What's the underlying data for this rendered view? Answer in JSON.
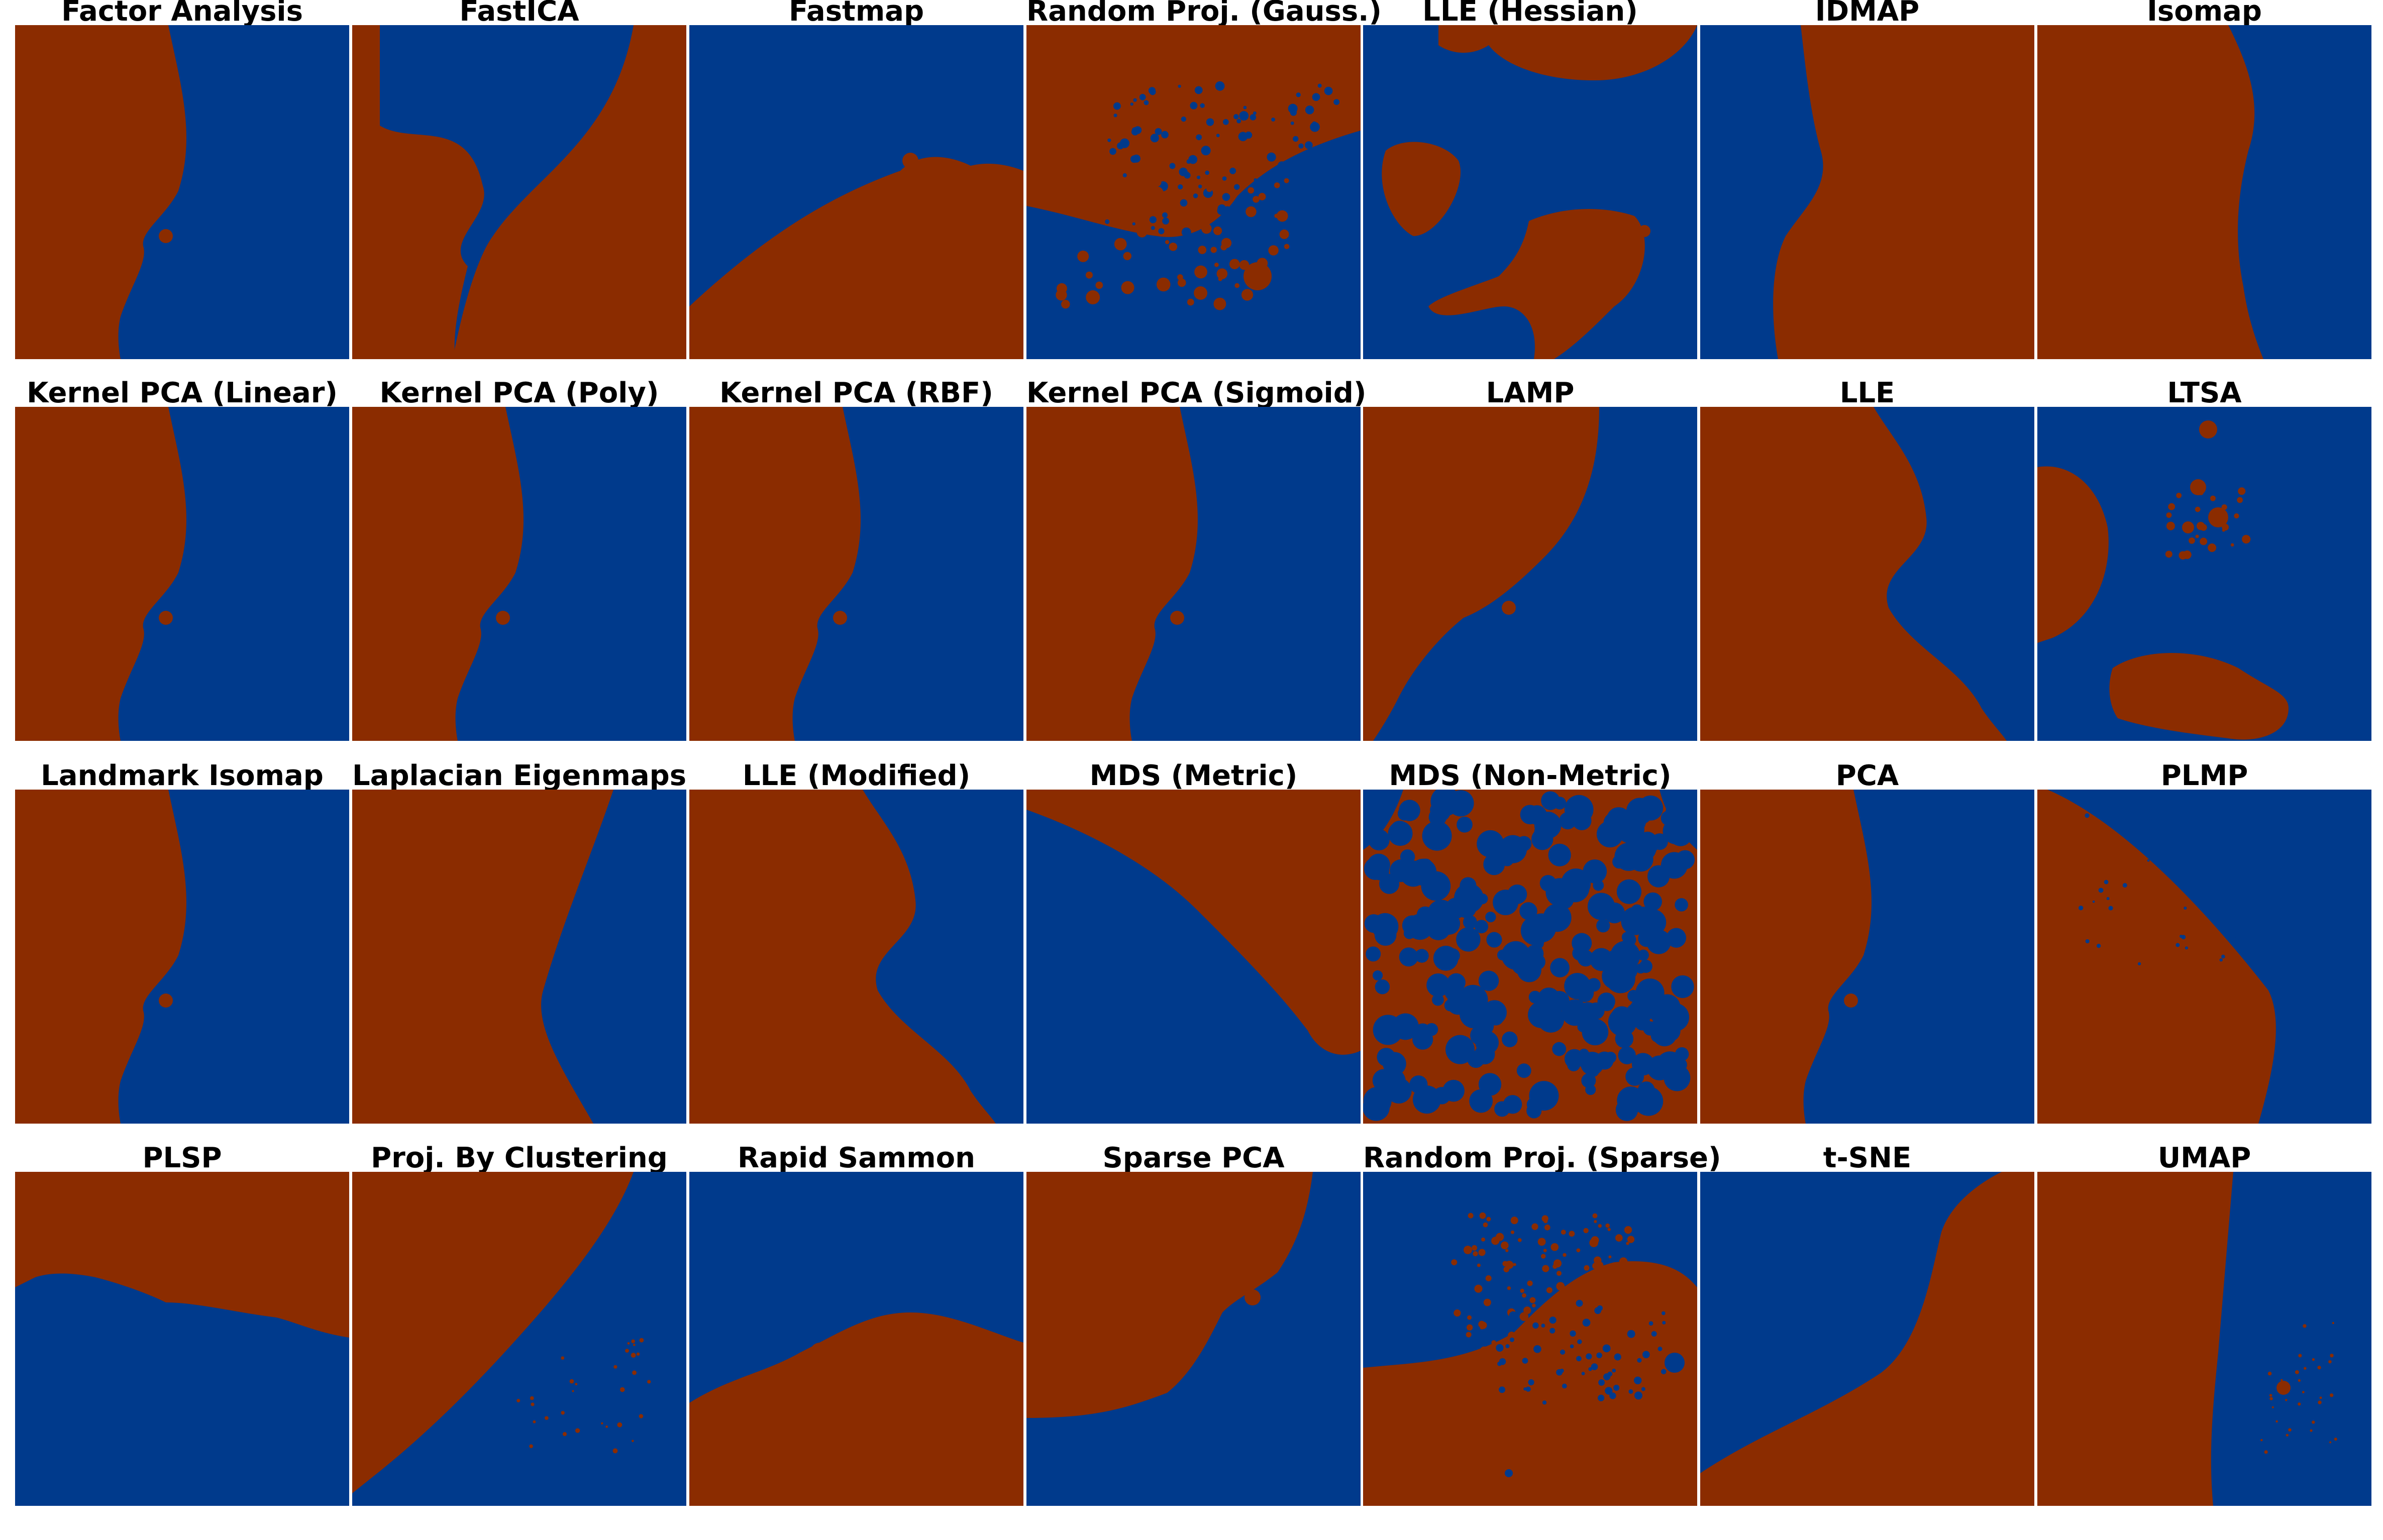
{
  "chart_data": {
    "type": "heatmap",
    "grid": false,
    "layout": "4x7 small multiples",
    "colors": {
      "region_a": "#8b2c00",
      "region_b": "#003a8c",
      "background": "#ffffff"
    },
    "panels": [
      {
        "title": "Factor Analysis",
        "shape": "left_red_curve"
      },
      {
        "title": "FastICA",
        "shape": "left_red_strip_bulge"
      },
      {
        "title": "Fastmap",
        "shape": "bottom_red_wedge"
      },
      {
        "title": "Random Proj. (Gauss.)",
        "shape": "top_red_speckled"
      },
      {
        "title": "LLE (Hessian)",
        "shape": "blue_with_red_blobs"
      },
      {
        "title": "IDMAP",
        "shape": "center_red_band"
      },
      {
        "title": "Isomap",
        "shape": "left_red_wide"
      },
      {
        "title": "Kernel PCA (Linear)",
        "shape": "left_red_curve"
      },
      {
        "title": "Kernel PCA (Poly)",
        "shape": "left_red_curve"
      },
      {
        "title": "Kernel PCA (RBF)",
        "shape": "left_red_curve"
      },
      {
        "title": "Kernel PCA (Sigmoid)",
        "shape": "left_red_curve"
      },
      {
        "title": "LAMP",
        "shape": "left_red_wide_notch"
      },
      {
        "title": "LLE",
        "shape": "left_red_s_curve"
      },
      {
        "title": "LTSA",
        "shape": "blue_with_red_islands"
      },
      {
        "title": "Landmark Isomap",
        "shape": "left_red_curve"
      },
      {
        "title": "Laplacian Eigenmaps",
        "shape": "red_diagonal_wedge"
      },
      {
        "title": "LLE (Modified)",
        "shape": "left_red_s_curve"
      },
      {
        "title": "MDS (Metric)",
        "shape": "top_right_red"
      },
      {
        "title": "MDS (Non-Metric)",
        "shape": "mixed_speckle"
      },
      {
        "title": "PCA",
        "shape": "left_red_curve"
      },
      {
        "title": "PLMP",
        "shape": "bottom_left_red_diagonal"
      },
      {
        "title": "PLSP",
        "shape": "top_red_band"
      },
      {
        "title": "Proj. By Clustering",
        "shape": "top_left_red_diagonal"
      },
      {
        "title": "Rapid Sammon",
        "shape": "bottom_red_dome"
      },
      {
        "title": "Sparse PCA",
        "shape": "top_left_red_curve"
      },
      {
        "title": "Random Proj. (Sparse)",
        "shape": "bottom_red_speckled"
      },
      {
        "title": "t-SNE",
        "shape": "bottom_right_red_diagonal"
      },
      {
        "title": "UMAP",
        "shape": "left_red_narrow"
      }
    ]
  }
}
